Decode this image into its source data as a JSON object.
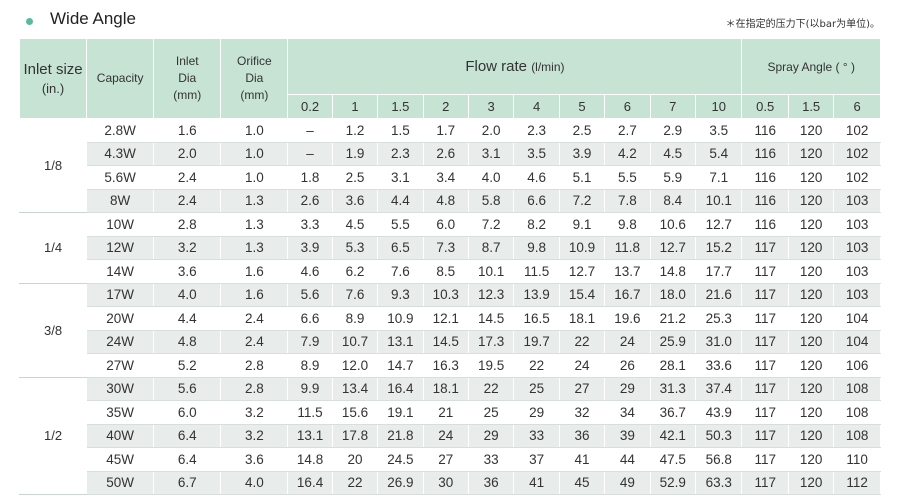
{
  "title": "Wide Angle",
  "note": "＊在指定的压力下(以bar为单位)。",
  "headers": {
    "inlet_size": "Inlet size",
    "inlet_size_unit": "(in.)",
    "capacity": "Capacity",
    "inlet_dia": "Inlet",
    "inlet_dia2": "Dia",
    "inlet_dia_unit": "(mm)",
    "orifice_dia": "Orifice",
    "orifice_dia2": "Dia",
    "orifice_dia_unit": "(mm)",
    "flow_rate": "Flow rate",
    "flow_rate_unit": "(l/min)",
    "spray_angle": "Spray Angle",
    "spray_angle_unit": "( ° )"
  },
  "flow_pressures": [
    "0.2",
    "1",
    "1.5",
    "2",
    "3",
    "4",
    "5",
    "6",
    "7",
    "10"
  ],
  "angle_pressures": [
    "0.5",
    "1.5",
    "6"
  ],
  "groups": [
    {
      "size": "1/8",
      "rows": [
        [
          "2.8W",
          "1.6",
          "1.0",
          "–",
          "1.2",
          "1.5",
          "1.7",
          "2.0",
          "2.3",
          "2.5",
          "2.7",
          "2.9",
          "3.5",
          "116",
          "120",
          "102"
        ],
        [
          "4.3W",
          "2.0",
          "1.0",
          "–",
          "1.9",
          "2.3",
          "2.6",
          "3.1",
          "3.5",
          "3.9",
          "4.2",
          "4.5",
          "5.4",
          "116",
          "120",
          "102"
        ],
        [
          "5.6W",
          "2.4",
          "1.0",
          "1.8",
          "2.5",
          "3.1",
          "3.4",
          "4.0",
          "4.6",
          "5.1",
          "5.5",
          "5.9",
          "7.1",
          "116",
          "120",
          "102"
        ],
        [
          "8W",
          "2.4",
          "1.3",
          "2.6",
          "3.6",
          "4.4",
          "4.8",
          "5.8",
          "6.6",
          "7.2",
          "7.8",
          "8.4",
          "10.1",
          "116",
          "120",
          "103"
        ]
      ]
    },
    {
      "size": "1/4",
      "rows": [
        [
          "10W",
          "2.8",
          "1.3",
          "3.3",
          "4.5",
          "5.5",
          "6.0",
          "7.2",
          "8.2",
          "9.1",
          "9.8",
          "10.6",
          "12.7",
          "116",
          "120",
          "103"
        ],
        [
          "12W",
          "3.2",
          "1.3",
          "3.9",
          "5.3",
          "6.5",
          "7.3",
          "8.7",
          "9.8",
          "10.9",
          "11.8",
          "12.7",
          "15.2",
          "117",
          "120",
          "103"
        ],
        [
          "14W",
          "3.6",
          "1.6",
          "4.6",
          "6.2",
          "7.6",
          "8.5",
          "10.1",
          "11.5",
          "12.7",
          "13.7",
          "14.8",
          "17.7",
          "117",
          "120",
          "103"
        ]
      ]
    },
    {
      "size": "3/8",
      "rows": [
        [
          "17W",
          "4.0",
          "1.6",
          "5.6",
          "7.6",
          "9.3",
          "10.3",
          "12.3",
          "13.9",
          "15.4",
          "16.7",
          "18.0",
          "21.6",
          "117",
          "120",
          "103"
        ],
        [
          "20W",
          "4.4",
          "2.4",
          "6.6",
          "8.9",
          "10.9",
          "12.1",
          "14.5",
          "16.5",
          "18.1",
          "19.6",
          "21.2",
          "25.3",
          "117",
          "120",
          "104"
        ],
        [
          "24W",
          "4.8",
          "2.4",
          "7.9",
          "10.7",
          "13.1",
          "14.5",
          "17.3",
          "19.7",
          "22",
          "24",
          "25.9",
          "31.0",
          "117",
          "120",
          "104"
        ],
        [
          "27W",
          "5.2",
          "2.8",
          "8.9",
          "12.0",
          "14.7",
          "16.3",
          "19.5",
          "22",
          "24",
          "26",
          "28.1",
          "33.6",
          "117",
          "120",
          "106"
        ]
      ]
    },
    {
      "size": "1/2",
      "rows": [
        [
          "30W",
          "5.6",
          "2.8",
          "9.9",
          "13.4",
          "16.4",
          "18.1",
          "22",
          "25",
          "27",
          "29",
          "31.3",
          "37.4",
          "117",
          "120",
          "108"
        ],
        [
          "35W",
          "6.0",
          "3.2",
          "11.5",
          "15.6",
          "19.1",
          "21",
          "25",
          "29",
          "32",
          "34",
          "36.7",
          "43.9",
          "117",
          "120",
          "108"
        ],
        [
          "40W",
          "6.4",
          "3.2",
          "13.1",
          "17.8",
          "21.8",
          "24",
          "29",
          "33",
          "36",
          "39",
          "42.1",
          "50.3",
          "117",
          "120",
          "108"
        ],
        [
          "45W",
          "6.4",
          "3.6",
          "14.8",
          "20",
          "24.5",
          "27",
          "33",
          "37",
          "41",
          "44",
          "47.5",
          "56.8",
          "117",
          "120",
          "110"
        ],
        [
          "50W",
          "6.7",
          "4.0",
          "16.4",
          "22",
          "26.9",
          "30",
          "36",
          "41",
          "45",
          "49",
          "52.9",
          "63.3",
          "117",
          "120",
          "112"
        ]
      ]
    }
  ]
}
